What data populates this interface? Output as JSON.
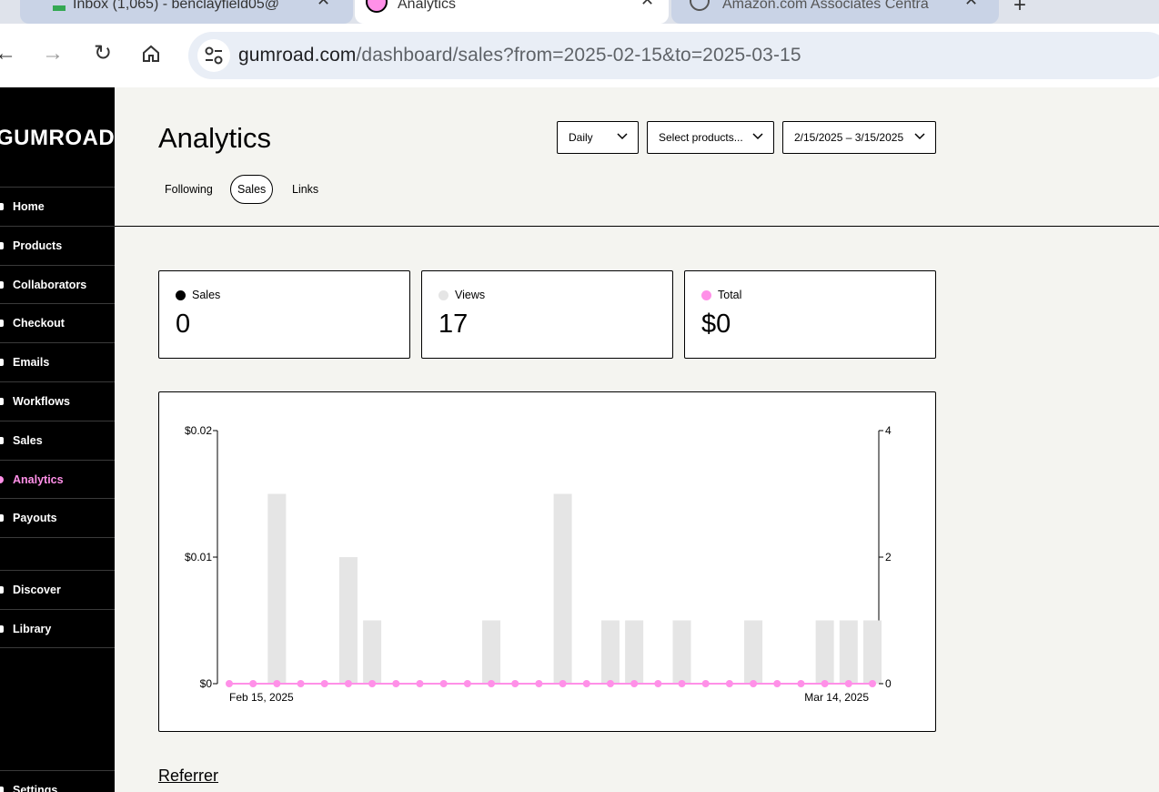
{
  "browser": {
    "tabs": [
      {
        "title": "Inbox (1,065) - benclayfield05@",
        "active": false
      },
      {
        "title": "Analytics",
        "active": true
      },
      {
        "title": "Amazon.com Associates Centra",
        "active": false
      }
    ],
    "url_host": "gumroad.com",
    "url_path": "/dashboard/sales?from=2025-02-15&to=2025-03-15"
  },
  "sidebar": {
    "logo": "GUMROAD",
    "items": [
      {
        "label": "Home",
        "icon": "home-icon"
      },
      {
        "label": "Products",
        "icon": "products-icon"
      },
      {
        "label": "Collaborators",
        "icon": "collaborators-icon"
      },
      {
        "label": "Checkout",
        "icon": "checkout-icon"
      },
      {
        "label": "Emails",
        "icon": "emails-icon"
      },
      {
        "label": "Workflows",
        "icon": "workflows-icon"
      },
      {
        "label": "Sales",
        "icon": "sales-icon"
      },
      {
        "label": "Analytics",
        "icon": "analytics-icon",
        "active": true
      },
      {
        "label": "Payouts",
        "icon": "payouts-icon"
      },
      {
        "label": "Discover",
        "icon": "discover-icon"
      },
      {
        "label": "Library",
        "icon": "library-icon"
      },
      {
        "label": "Settings",
        "icon": "settings-icon"
      }
    ]
  },
  "header": {
    "title": "Analytics",
    "aggregation_select": "Daily",
    "products_select": "Select products...",
    "date_range_select": "2/15/2025 – 3/15/2025",
    "tabs": [
      {
        "label": "Following",
        "active": false
      },
      {
        "label": "Sales",
        "active": true
      },
      {
        "label": "Links",
        "active": false
      }
    ]
  },
  "stats": [
    {
      "label": "Sales",
      "value": "0",
      "color": "#000000"
    },
    {
      "label": "Views",
      "value": "17",
      "color": "#e5e5e5"
    },
    {
      "label": "Total",
      "value": "$0",
      "color": "#ff90e8"
    }
  ],
  "chart_data": {
    "type": "bar",
    "x_start_label": "Feb 15, 2025",
    "x_end_label": "Mar 14, 2025",
    "left_axis": {
      "ticks": [
        "$0",
        "$0.01",
        "$0.02"
      ],
      "range": [
        0,
        0.02
      ]
    },
    "right_axis": {
      "ticks": [
        "0",
        "2",
        "4"
      ],
      "range": [
        0,
        4
      ]
    },
    "series": [
      {
        "name": "Views",
        "color": "#e5e5e5",
        "axis": "right",
        "values": [
          0,
          0,
          3,
          0,
          0,
          2,
          1,
          0,
          0,
          0,
          0,
          1,
          0,
          0,
          3,
          0,
          1,
          1,
          0,
          1,
          0,
          0,
          1,
          0,
          0,
          1,
          1,
          1
        ]
      },
      {
        "name": "Total",
        "color": "#ff90e8",
        "axis": "left",
        "values": [
          0,
          0,
          0,
          0,
          0,
          0,
          0,
          0,
          0,
          0,
          0,
          0,
          0,
          0,
          0,
          0,
          0,
          0,
          0,
          0,
          0,
          0,
          0,
          0,
          0,
          0,
          0,
          0
        ]
      }
    ]
  },
  "referrer_heading": "Referrer"
}
